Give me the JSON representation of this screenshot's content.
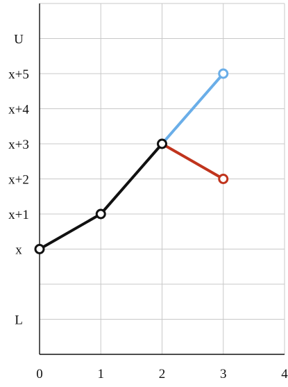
{
  "chart_data": {
    "type": "line",
    "title": "",
    "xlabel": "",
    "ylabel": "",
    "xlim": [
      0,
      4
    ],
    "ylim": [
      -3,
      7
    ],
    "grid": true,
    "x_ticks": [
      {
        "value": 0,
        "label": "0"
      },
      {
        "value": 1,
        "label": "1"
      },
      {
        "value": 2,
        "label": "2"
      },
      {
        "value": 3,
        "label": "3"
      },
      {
        "value": 4,
        "label": "4"
      }
    ],
    "y_ticks": [
      {
        "value": 6,
        "label": "U"
      },
      {
        "value": 5,
        "label": "x+5"
      },
      {
        "value": 4,
        "label": "x+4"
      },
      {
        "value": 3,
        "label": "x+3"
      },
      {
        "value": 2,
        "label": "x+2"
      },
      {
        "value": 1,
        "label": "x+1"
      },
      {
        "value": 0,
        "label": "x"
      },
      {
        "value": -2,
        "label": "L"
      }
    ],
    "series": [
      {
        "color": "#111111",
        "x": [
          0,
          1,
          2
        ],
        "y": [
          0,
          1,
          3
        ]
      },
      {
        "color": "#6aaee8",
        "x": [
          2,
          3
        ],
        "y": [
          3,
          5
        ]
      },
      {
        "color": "#c0341d",
        "x": [
          2,
          3
        ],
        "y": [
          3,
          2
        ]
      }
    ]
  }
}
